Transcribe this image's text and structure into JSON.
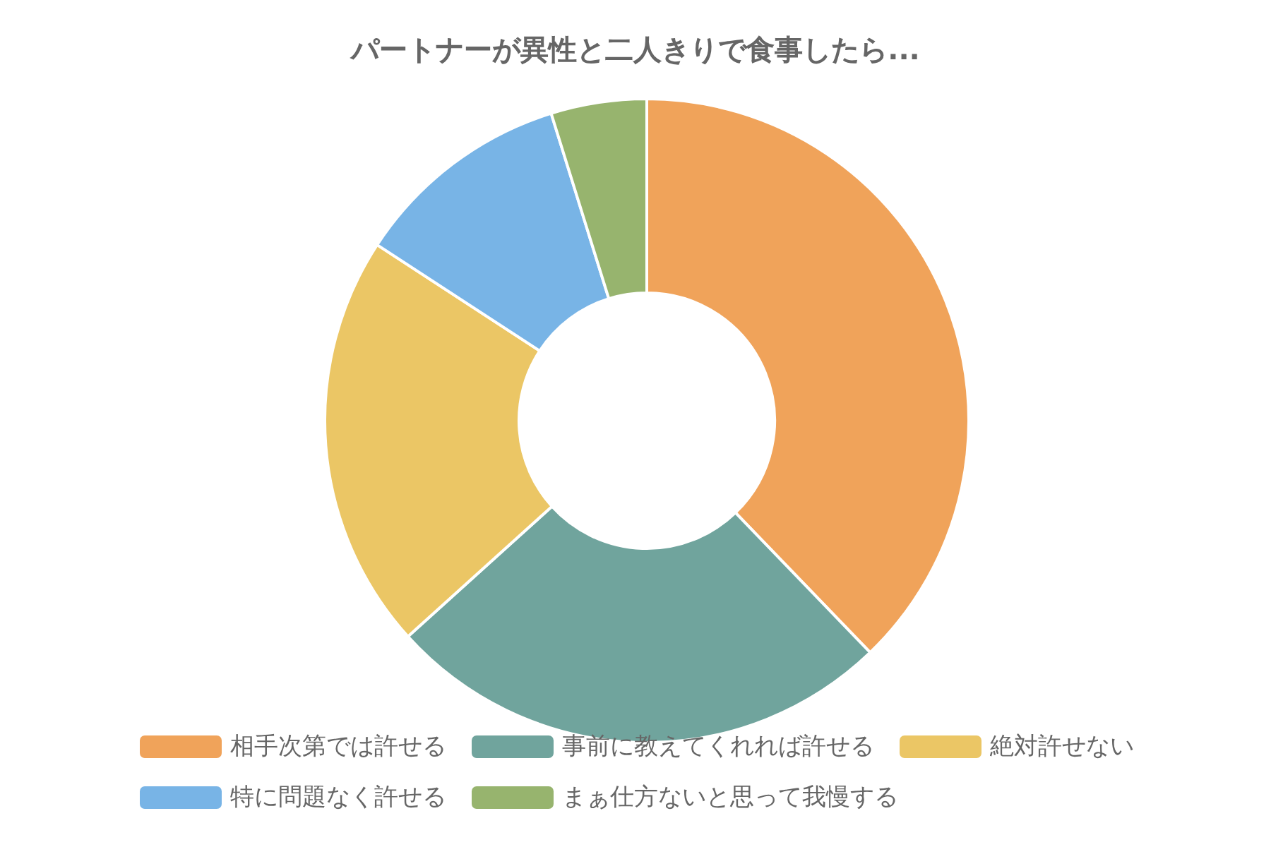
{
  "chart_data": {
    "type": "donut",
    "title": "パートナーが異性と二人きりで食事したら...",
    "categories": [
      "相手次第では許せる",
      "事前に教えてくれれば許せる",
      "絶対許せない",
      "特に問題なく許せる",
      "まぁ仕方ないと思って我慢する"
    ],
    "values": [
      37.8,
      25.5,
      20.9,
      11,
      4.8
    ],
    "colors": [
      "#f0a35a",
      "#70a49d",
      "#ebc665",
      "#78b4e6",
      "#97b46e"
    ],
    "legend": "bottom"
  }
}
